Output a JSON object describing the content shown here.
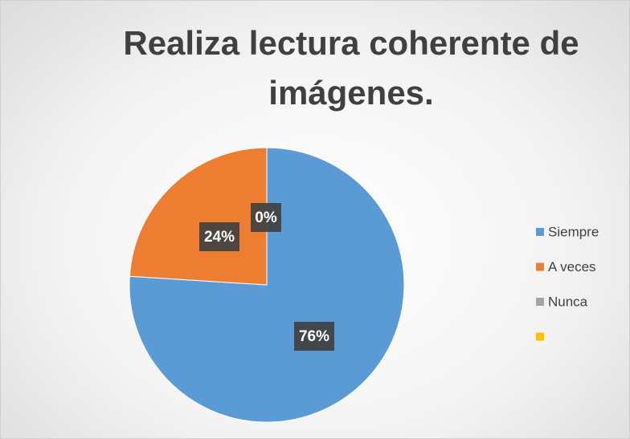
{
  "chart_data": {
    "type": "pie",
    "title": "Realiza lectura coherente de imágenes.",
    "categories": [
      "Siempre",
      "A veces",
      "Nunca",
      null
    ],
    "values": [
      76,
      24,
      0,
      0
    ],
    "value_labels": [
      "76%",
      "24%",
      "0%",
      null
    ],
    "colors": [
      "#5b9bd5",
      "#ed7d31",
      "#a5a5a5",
      "#ffc000"
    ],
    "legend": "right"
  }
}
